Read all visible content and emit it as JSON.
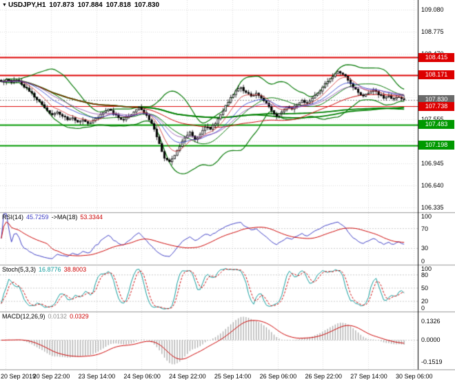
{
  "window": {
    "title_symbol": "USDJPY,H1",
    "ohlc": {
      "open": "107.873",
      "high": "107.884",
      "low": "107.818",
      "close": "107.830"
    }
  },
  "colors": {
    "resistance_red": "#dd0000",
    "support_green": "#009900",
    "bollinger_green": "#007700",
    "slow_ma_green": "#008000",
    "smooth_ma_red": "#cc0000",
    "price_badge_gray": "#6a6a6a",
    "rsi_line_blue": "#3b3bc4",
    "rsi_ma_red": "#cc0000",
    "stoch_main_teal": "#0f9b9b",
    "stoch_signal_red": "#cc0000",
    "macd_hist_silver": "#aaaaaa",
    "macd_signal_red": "#cc0000",
    "grid_gray": "#d9d9d9",
    "candle_up": "#ffffff",
    "candle_down": "#000000"
  },
  "main_axis": {
    "ticks": [
      "109.080",
      "108.775",
      "108.470",
      "107.555",
      "106.945",
      "106.640",
      "106.335"
    ],
    "badges": [
      {
        "label": "108.415",
        "color": "#dd0000"
      },
      {
        "label": "108.171",
        "color": "#dd0000"
      },
      {
        "label": "107.830",
        "color": "#6a6a6a"
      },
      {
        "label": "107.738",
        "color": "#dd0000"
      },
      {
        "label": "107.483",
        "color": "#009900"
      },
      {
        "label": "107.198",
        "color": "#009900"
      }
    ]
  },
  "panels": {
    "rsi": {
      "name": "RSI(14)",
      "value": "45.7259",
      "ma_name": "->MA(18)",
      "ma_value": "53.3344",
      "ticks": [
        "100",
        "70",
        "30",
        "0"
      ]
    },
    "stoch": {
      "name": "Stoch(5,3,3)",
      "value": "16.8776",
      "signal_value": "38.8003",
      "ticks": [
        "100",
        "80",
        "50",
        "20",
        "0"
      ]
    },
    "macd": {
      "name": "MACD(12,26,9)",
      "value": "0.0132",
      "signal_value": "0.0329",
      "ticks": [
        "0.1326",
        "0.0000",
        "-0.1519"
      ]
    }
  },
  "x_axis": {
    "labels": [
      "20 Sep 2019",
      "20 Sep 22:00",
      "23 Sep 14:00",
      "24 Sep 06:00",
      "24 Sep 22:00",
      "25 Sep 14:00",
      "26 Sep 06:00",
      "26 Sep 22:00",
      "27 Sep 14:00",
      "30 Sep 06:00"
    ]
  },
  "chart_data": {
    "type": "candlestick",
    "symbol": "USDJPY",
    "timeframe": "H1",
    "title": "USDJPY,H1 107.873 107.884 107.818 107.830",
    "ylim": [
      106.27,
      109.21
    ],
    "y_tick_start": 109.08,
    "y_tick_step": 0.305,
    "close_path": [
      108.08,
      108.11,
      108.07,
      108.1,
      108.04,
      107.99,
      107.92,
      107.83,
      107.76,
      107.68,
      107.62,
      107.66,
      107.6,
      107.55,
      107.58,
      107.52,
      107.55,
      107.5,
      107.54,
      107.58,
      107.65,
      107.7,
      107.63,
      107.58,
      107.55,
      107.6,
      107.66,
      107.72,
      107.65,
      107.55,
      107.42,
      107.22,
      107.02,
      106.97,
      107.06,
      107.18,
      107.3,
      107.38,
      107.28,
      107.35,
      107.45,
      107.42,
      107.5,
      107.62,
      107.75,
      107.86,
      107.95,
      108.0,
      107.93,
      107.88,
      107.92,
      107.85,
      107.78,
      107.68,
      107.6,
      107.66,
      107.73,
      107.7,
      107.76,
      107.82,
      107.78,
      107.85,
      107.92,
      108.0,
      108.08,
      108.15,
      108.22,
      108.18,
      108.1,
      108.0,
      107.93,
      107.88,
      107.92,
      107.96,
      107.9,
      107.85,
      107.88,
      107.84,
      107.87,
      107.83
    ],
    "hlines": [
      {
        "value": 108.415,
        "color": "#dd0000",
        "width": 2
      },
      {
        "value": 108.171,
        "color": "#dd0000",
        "width": 2
      },
      {
        "value": 107.738,
        "color": "#dd0000",
        "width": 1
      },
      {
        "value": 107.483,
        "color": "#009900",
        "width": 2
      },
      {
        "value": 107.198,
        "color": "#009900",
        "width": 2
      }
    ],
    "current_price": 107.83,
    "indicators": {
      "bollinger_period": 20,
      "bollinger_dev": 2,
      "rsi_period": 14,
      "rsi_ma_period": 18,
      "stoch": [
        5,
        3,
        3
      ],
      "macd": [
        12,
        26,
        9
      ]
    }
  }
}
